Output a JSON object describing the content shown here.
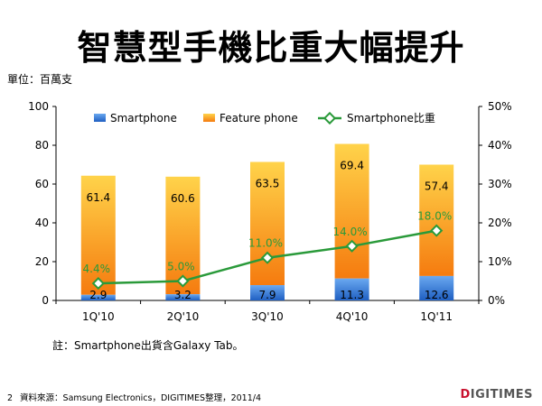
{
  "title": "智慧型手機比重大幅提升",
  "unit_label": "單位：百萬支",
  "note": "註：Smartphone出貨含Galaxy Tab。",
  "footer": {
    "page": "2",
    "source": "資料來源：Samsung Electronics，DIGITIMES整理，2011/4"
  },
  "brand": {
    "prefix": "D",
    "rest": "IGITIMES"
  },
  "colors": {
    "smartphone": "#3b78d8",
    "feature": "#f79a1c",
    "share_line": "#2a9a3a",
    "share_label": "#2a9a3a"
  },
  "chart_data": {
    "type": "bar",
    "stacked": true,
    "categories": [
      "1Q'10",
      "2Q'10",
      "3Q'10",
      "4Q'10",
      "1Q'11"
    ],
    "series": [
      {
        "name": "Smartphone",
        "values": [
          2.9,
          3.2,
          7.9,
          11.3,
          12.6
        ],
        "labels": [
          "2.9",
          "3.2",
          "7.9",
          "11.3",
          "12.6"
        ]
      },
      {
        "name": "Feature phone",
        "values": [
          61.4,
          60.6,
          63.5,
          69.4,
          57.4
        ],
        "labels": [
          "61.4",
          "60.6",
          "63.5",
          "69.4",
          "57.4"
        ]
      }
    ],
    "line_series": {
      "name": "Smartphone比重",
      "type": "line",
      "axis": "right",
      "values": [
        4.4,
        5.0,
        11.0,
        14.0,
        18.0
      ],
      "labels": [
        "4.4%",
        "5.0%",
        "11.0%",
        "14.0%",
        "18.0%"
      ]
    },
    "y_left": {
      "min": 0,
      "max": 100,
      "ticks": [
        "0",
        "20",
        "40",
        "60",
        "80",
        "100"
      ]
    },
    "y_right": {
      "min": 0,
      "max": 50,
      "ticks": [
        "0%",
        "10%",
        "20%",
        "30%",
        "40%",
        "50%"
      ]
    },
    "legend_position": "top",
    "grid": false
  }
}
